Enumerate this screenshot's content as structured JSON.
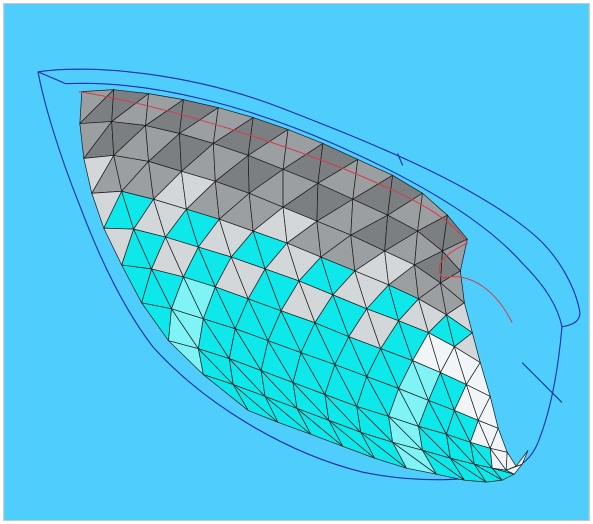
{
  "view": {
    "background_color": "#4fcdfd",
    "mesh_edge_color": "#1a1a1a",
    "outline_color": "#1c2aa8",
    "edge_highlight_color": "#d43c4a",
    "colors": {
      "cyan": "#0fe8ea",
      "light_cyan": "#7ff3f5",
      "white_face": "#f2f5f7",
      "light_gray": "#d4d7da",
      "gray": "#9c9fa2",
      "dark_gray": "#7c7f82"
    }
  }
}
